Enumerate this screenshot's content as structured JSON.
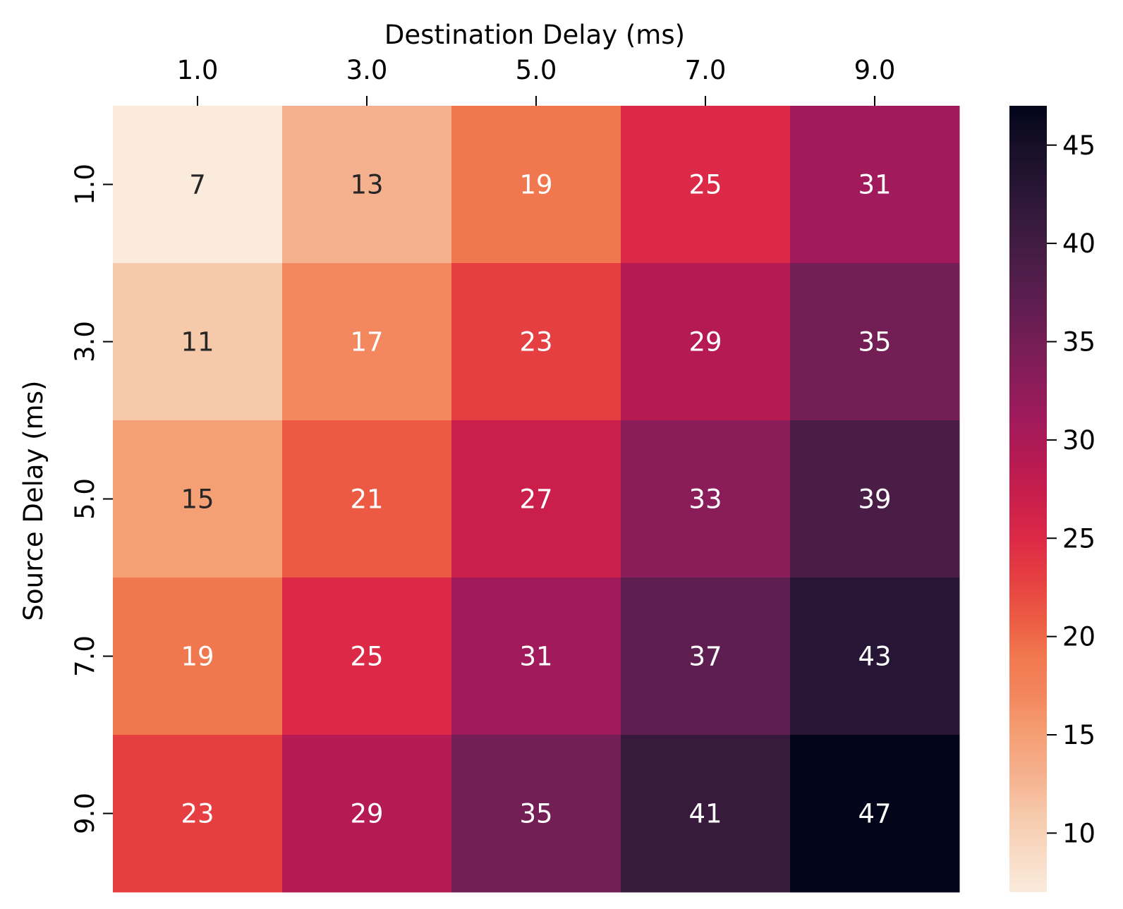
{
  "chart_data": {
    "type": "heatmap",
    "title": "",
    "xlabel": "Destination Delay (ms)",
    "ylabel": "Source Delay (ms)",
    "x_categories": [
      "1.0",
      "3.0",
      "5.0",
      "7.0",
      "9.0"
    ],
    "y_categories": [
      "1.0",
      "3.0",
      "5.0",
      "7.0",
      "9.0"
    ],
    "x_axis_position": "top",
    "values": [
      [
        7,
        13,
        19,
        25,
        31
      ],
      [
        11,
        17,
        23,
        29,
        35
      ],
      [
        15,
        21,
        27,
        33,
        39
      ],
      [
        19,
        25,
        31,
        37,
        43
      ],
      [
        23,
        29,
        35,
        41,
        47
      ]
    ],
    "annotated": true,
    "colormap": "rocket_r",
    "colorbar": {
      "range": [
        7,
        47
      ],
      "ticks": [
        10,
        15,
        20,
        25,
        30,
        35,
        40,
        45
      ],
      "tick_labels": [
        "10",
        "15",
        "20",
        "25",
        "30",
        "35",
        "40",
        "45"
      ],
      "placement": "right"
    },
    "colormap_stops": [
      {
        "value": 7,
        "color": "#faebdd"
      },
      {
        "value": 11,
        "color": "#f6c9aa"
      },
      {
        "value": 13,
        "color": "#f5b08e"
      },
      {
        "value": 15,
        "color": "#f59f74"
      },
      {
        "value": 17,
        "color": "#f3875e"
      },
      {
        "value": 19,
        "color": "#f1774f"
      },
      {
        "value": 21,
        "color": "#ec5a43"
      },
      {
        "value": 23,
        "color": "#e63f42"
      },
      {
        "value": 25,
        "color": "#dc2947"
      },
      {
        "value": 27,
        "color": "#ca1f4b"
      },
      {
        "value": 29,
        "color": "#b61a52"
      },
      {
        "value": 31,
        "color": "#a11a5b"
      },
      {
        "value": 33,
        "color": "#8a1c5a"
      },
      {
        "value": 35,
        "color": "#731e54"
      },
      {
        "value": 37,
        "color": "#5e1e50"
      },
      {
        "value": 39,
        "color": "#4a1d47"
      },
      {
        "value": 41,
        "color": "#381a3d"
      },
      {
        "value": 43,
        "color": "#261534"
      },
      {
        "value": 45,
        "color": "#160f26"
      },
      {
        "value": 47,
        "color": "#03051a"
      }
    ],
    "dark_text_color": "#262626",
    "light_text_color": "#ffffff",
    "text_threshold": 16
  }
}
